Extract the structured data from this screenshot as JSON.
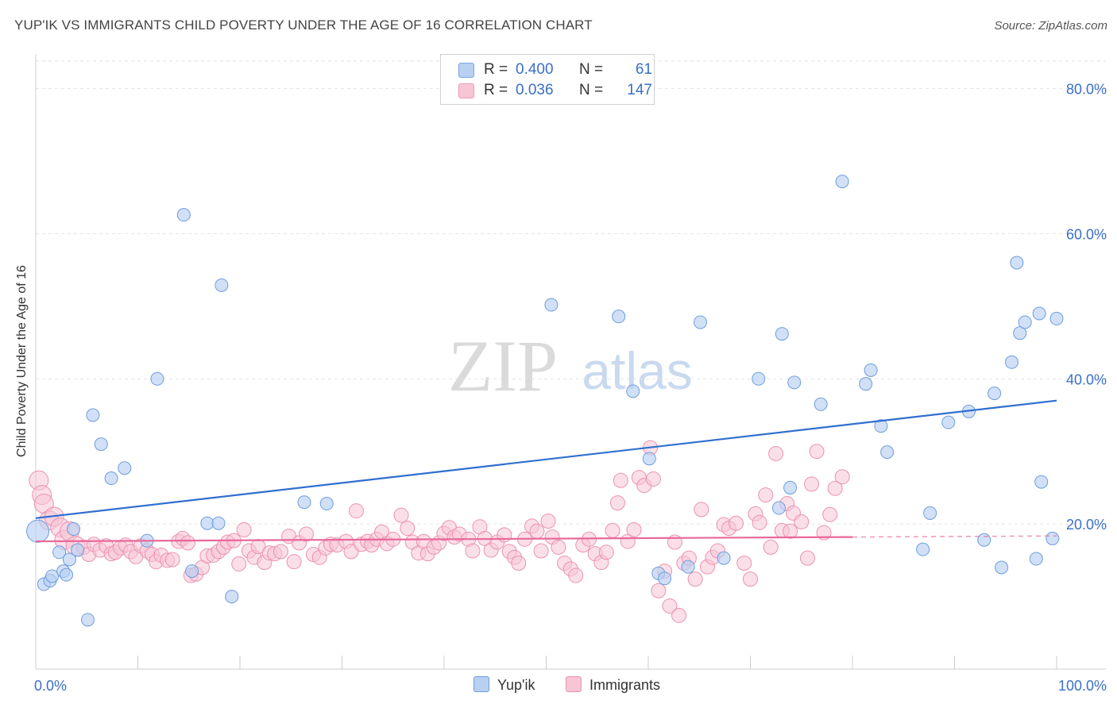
{
  "title": "YUP'IK VS IMMIGRANTS CHILD POVERTY UNDER THE AGE OF 16 CORRELATION CHART",
  "source": "Source: ZipAtlas.com",
  "watermark": {
    "zip": "ZIP",
    "atlas": "atlas"
  },
  "legend": {
    "rows": [
      {
        "r_label": "R =",
        "r_value": "0.400",
        "n_label": "N =",
        "n_value": "61",
        "fill": "#b8d0f2",
        "stroke": "#7aa6e0"
      },
      {
        "r_label": "R =",
        "r_value": "0.036",
        "n_label": "N =",
        "n_value": "147",
        "fill": "#f8c5d5",
        "stroke": "#ee98b4"
      }
    ]
  },
  "bottom_legend": {
    "items": [
      "Yup'ik",
      "Immigrants"
    ]
  },
  "chart_data": {
    "type": "scatter",
    "title": "YUP'IK VS IMMIGRANTS CHILD POVERTY UNDER THE AGE OF 16 CORRELATION CHART",
    "xlabel": "",
    "ylabel": "Child Poverty Under the Age of 16",
    "xlim": [
      0,
      100
    ],
    "ylim": [
      0,
      84
    ],
    "x_tick_labels": [
      {
        "value": 0,
        "label": "0.0%"
      },
      {
        "value": 100,
        "label": "100.0%"
      }
    ],
    "y_tick_labels": [
      {
        "value": 20,
        "label": "20.0%"
      },
      {
        "value": 40,
        "label": "40.0%"
      },
      {
        "value": 60,
        "label": "60.0%"
      },
      {
        "value": 80,
        "label": "80.0%"
      }
    ],
    "grid": true,
    "legend_position": "top-center",
    "colors": {
      "yupik_fill": "#b8d0f2",
      "yupik_stroke": "#6d9edc",
      "yupik_line": "#2f6fd0",
      "imm_fill": "#f8c5d5",
      "imm_stroke": "#ea92b0",
      "imm_line": "#e8689a"
    },
    "series": [
      {
        "name": "Yup'ik",
        "trend": {
          "x": [
            0,
            100
          ],
          "y": [
            20.8,
            37.0
          ]
        },
        "points": [
          [
            0.2,
            19.0
          ],
          [
            0.8,
            11.7
          ],
          [
            1.4,
            12.2
          ],
          [
            1.6,
            12.8
          ],
          [
            2.3,
            16.1
          ],
          [
            2.7,
            13.5
          ],
          [
            3.0,
            13.0
          ],
          [
            3.3,
            15.1
          ],
          [
            3.7,
            19.3
          ],
          [
            4.1,
            16.4
          ],
          [
            5.1,
            6.8
          ],
          [
            5.6,
            35.0
          ],
          [
            6.4,
            31.0
          ],
          [
            7.4,
            26.3
          ],
          [
            8.7,
            27.7
          ],
          [
            10.9,
            17.7
          ],
          [
            11.9,
            40.0
          ],
          [
            14.5,
            62.6
          ],
          [
            15.3,
            13.5
          ],
          [
            16.8,
            20.1
          ],
          [
            17.9,
            20.1
          ],
          [
            18.2,
            52.9
          ],
          [
            19.2,
            10.0
          ],
          [
            26.3,
            23.0
          ],
          [
            28.5,
            22.8
          ],
          [
            50.5,
            50.2
          ],
          [
            57.1,
            48.6
          ],
          [
            58.5,
            38.3
          ],
          [
            60.1,
            29.0
          ],
          [
            61.0,
            13.2
          ],
          [
            61.6,
            12.5
          ],
          [
            63.9,
            14.1
          ],
          [
            65.1,
            47.8
          ],
          [
            67.4,
            15.3
          ],
          [
            70.8,
            40.0
          ],
          [
            72.8,
            22.2
          ],
          [
            73.1,
            46.2
          ],
          [
            73.9,
            25.0
          ],
          [
            74.3,
            39.5
          ],
          [
            76.9,
            36.5
          ],
          [
            79.0,
            67.2
          ],
          [
            81.3,
            39.3
          ],
          [
            81.8,
            41.2
          ],
          [
            82.8,
            33.5
          ],
          [
            83.4,
            29.9
          ],
          [
            86.9,
            16.5
          ],
          [
            87.6,
            21.5
          ],
          [
            89.4,
            34.0
          ],
          [
            91.4,
            35.5
          ],
          [
            92.9,
            17.8
          ],
          [
            93.9,
            38.0
          ],
          [
            94.6,
            14.0
          ],
          [
            95.6,
            42.3
          ],
          [
            96.1,
            56.0
          ],
          [
            96.4,
            46.3
          ],
          [
            96.9,
            47.8
          ],
          [
            98.0,
            15.2
          ],
          [
            98.3,
            49.0
          ],
          [
            98.5,
            25.8
          ],
          [
            99.6,
            18.0
          ],
          [
            100.0,
            48.3
          ]
        ]
      },
      {
        "name": "Immigrants",
        "trend": {
          "x": [
            0,
            80
          ],
          "y": [
            17.6,
            18.2
          ]
        },
        "points": [
          [
            0.3,
            26.0
          ],
          [
            0.6,
            24.0
          ],
          [
            0.8,
            22.8
          ],
          [
            1.3,
            20.5
          ],
          [
            1.8,
            21.0
          ],
          [
            2.4,
            19.5
          ],
          [
            2.8,
            17.8
          ],
          [
            3.3,
            19.0
          ],
          [
            3.9,
            17.0
          ],
          [
            4.7,
            16.8
          ],
          [
            5.2,
            15.8
          ],
          [
            5.7,
            17.2
          ],
          [
            6.3,
            16.4
          ],
          [
            6.9,
            17.0
          ],
          [
            7.4,
            15.9
          ],
          [
            7.8,
            16.1
          ],
          [
            8.3,
            16.7
          ],
          [
            8.8,
            17.1
          ],
          [
            9.3,
            16.2
          ],
          [
            9.8,
            15.5
          ],
          [
            10.3,
            17.0
          ],
          [
            10.9,
            16.3
          ],
          [
            11.4,
            15.8
          ],
          [
            11.8,
            14.8
          ],
          [
            12.3,
            15.7
          ],
          [
            12.9,
            15.0
          ],
          [
            13.4,
            15.1
          ],
          [
            14.0,
            17.6
          ],
          [
            14.4,
            18.0
          ],
          [
            14.9,
            17.4
          ],
          [
            15.2,
            12.9
          ],
          [
            15.7,
            13.1
          ],
          [
            16.3,
            14.0
          ],
          [
            16.8,
            15.6
          ],
          [
            17.4,
            15.7
          ],
          [
            17.9,
            16.2
          ],
          [
            18.4,
            16.8
          ],
          [
            18.8,
            17.5
          ],
          [
            19.4,
            17.7
          ],
          [
            19.9,
            14.5
          ],
          [
            20.4,
            19.2
          ],
          [
            20.9,
            16.3
          ],
          [
            21.4,
            15.4
          ],
          [
            21.8,
            16.9
          ],
          [
            22.4,
            14.7
          ],
          [
            22.9,
            16.0
          ],
          [
            23.4,
            15.9
          ],
          [
            24.0,
            16.2
          ],
          [
            24.8,
            18.3
          ],
          [
            25.3,
            14.8
          ],
          [
            25.8,
            17.4
          ],
          [
            26.5,
            18.6
          ],
          [
            27.2,
            15.8
          ],
          [
            27.8,
            15.4
          ],
          [
            28.4,
            16.7
          ],
          [
            28.9,
            17.2
          ],
          [
            29.5,
            17.1
          ],
          [
            30.4,
            17.6
          ],
          [
            30.9,
            16.2
          ],
          [
            31.4,
            21.8
          ],
          [
            31.9,
            17.2
          ],
          [
            32.5,
            17.6
          ],
          [
            32.9,
            17.1
          ],
          [
            33.4,
            17.9
          ],
          [
            33.9,
            18.9
          ],
          [
            34.4,
            17.3
          ],
          [
            35.0,
            17.9
          ],
          [
            35.8,
            21.2
          ],
          [
            36.4,
            19.4
          ],
          [
            36.9,
            17.5
          ],
          [
            37.5,
            16.0
          ],
          [
            38.0,
            17.6
          ],
          [
            38.4,
            15.9
          ],
          [
            39.0,
            16.8
          ],
          [
            39.5,
            17.4
          ],
          [
            40.0,
            18.7
          ],
          [
            40.5,
            19.5
          ],
          [
            41.0,
            18.2
          ],
          [
            41.5,
            18.6
          ],
          [
            42.4,
            17.9
          ],
          [
            42.8,
            16.3
          ],
          [
            43.5,
            19.6
          ],
          [
            44.0,
            18.0
          ],
          [
            44.6,
            16.4
          ],
          [
            45.2,
            17.5
          ],
          [
            45.9,
            18.5
          ],
          [
            46.4,
            16.2
          ],
          [
            46.9,
            15.4
          ],
          [
            47.3,
            14.6
          ],
          [
            47.9,
            17.9
          ],
          [
            48.6,
            19.7
          ],
          [
            49.1,
            19.0
          ],
          [
            49.5,
            16.3
          ],
          [
            50.2,
            20.4
          ],
          [
            50.6,
            18.2
          ],
          [
            51.2,
            16.8
          ],
          [
            51.8,
            14.6
          ],
          [
            52.4,
            13.8
          ],
          [
            52.9,
            12.9
          ],
          [
            53.6,
            17.1
          ],
          [
            54.2,
            17.9
          ],
          [
            54.8,
            15.9
          ],
          [
            55.4,
            14.7
          ],
          [
            55.9,
            16.1
          ],
          [
            56.5,
            19.1
          ],
          [
            57.0,
            22.9
          ],
          [
            57.3,
            26.0
          ],
          [
            58.0,
            17.6
          ],
          [
            58.6,
            19.2
          ],
          [
            59.1,
            26.4
          ],
          [
            59.6,
            25.3
          ],
          [
            60.2,
            30.5
          ],
          [
            60.5,
            26.2
          ],
          [
            61.0,
            10.8
          ],
          [
            61.6,
            13.5
          ],
          [
            62.1,
            8.7
          ],
          [
            62.6,
            17.5
          ],
          [
            63.0,
            7.4
          ],
          [
            63.5,
            14.6
          ],
          [
            64.0,
            15.3
          ],
          [
            64.6,
            12.4
          ],
          [
            65.2,
            22.0
          ],
          [
            65.8,
            14.1
          ],
          [
            66.3,
            15.4
          ],
          [
            66.8,
            16.3
          ],
          [
            67.4,
            19.9
          ],
          [
            67.9,
            19.4
          ],
          [
            68.6,
            20.1
          ],
          [
            69.4,
            14.6
          ],
          [
            70.0,
            12.4
          ],
          [
            70.5,
            21.4
          ],
          [
            70.9,
            20.2
          ],
          [
            71.5,
            24.0
          ],
          [
            72.0,
            16.8
          ],
          [
            72.5,
            29.7
          ],
          [
            73.1,
            19.1
          ],
          [
            73.6,
            22.8
          ],
          [
            74.2,
            21.5
          ],
          [
            75.0,
            20.3
          ],
          [
            75.6,
            15.3
          ],
          [
            76.0,
            25.5
          ],
          [
            76.5,
            30.0
          ],
          [
            77.2,
            18.8
          ],
          [
            77.8,
            21.3
          ],
          [
            78.3,
            24.9
          ],
          [
            79.0,
            26.5
          ],
          [
            73.9,
            19.0
          ]
        ]
      }
    ]
  }
}
